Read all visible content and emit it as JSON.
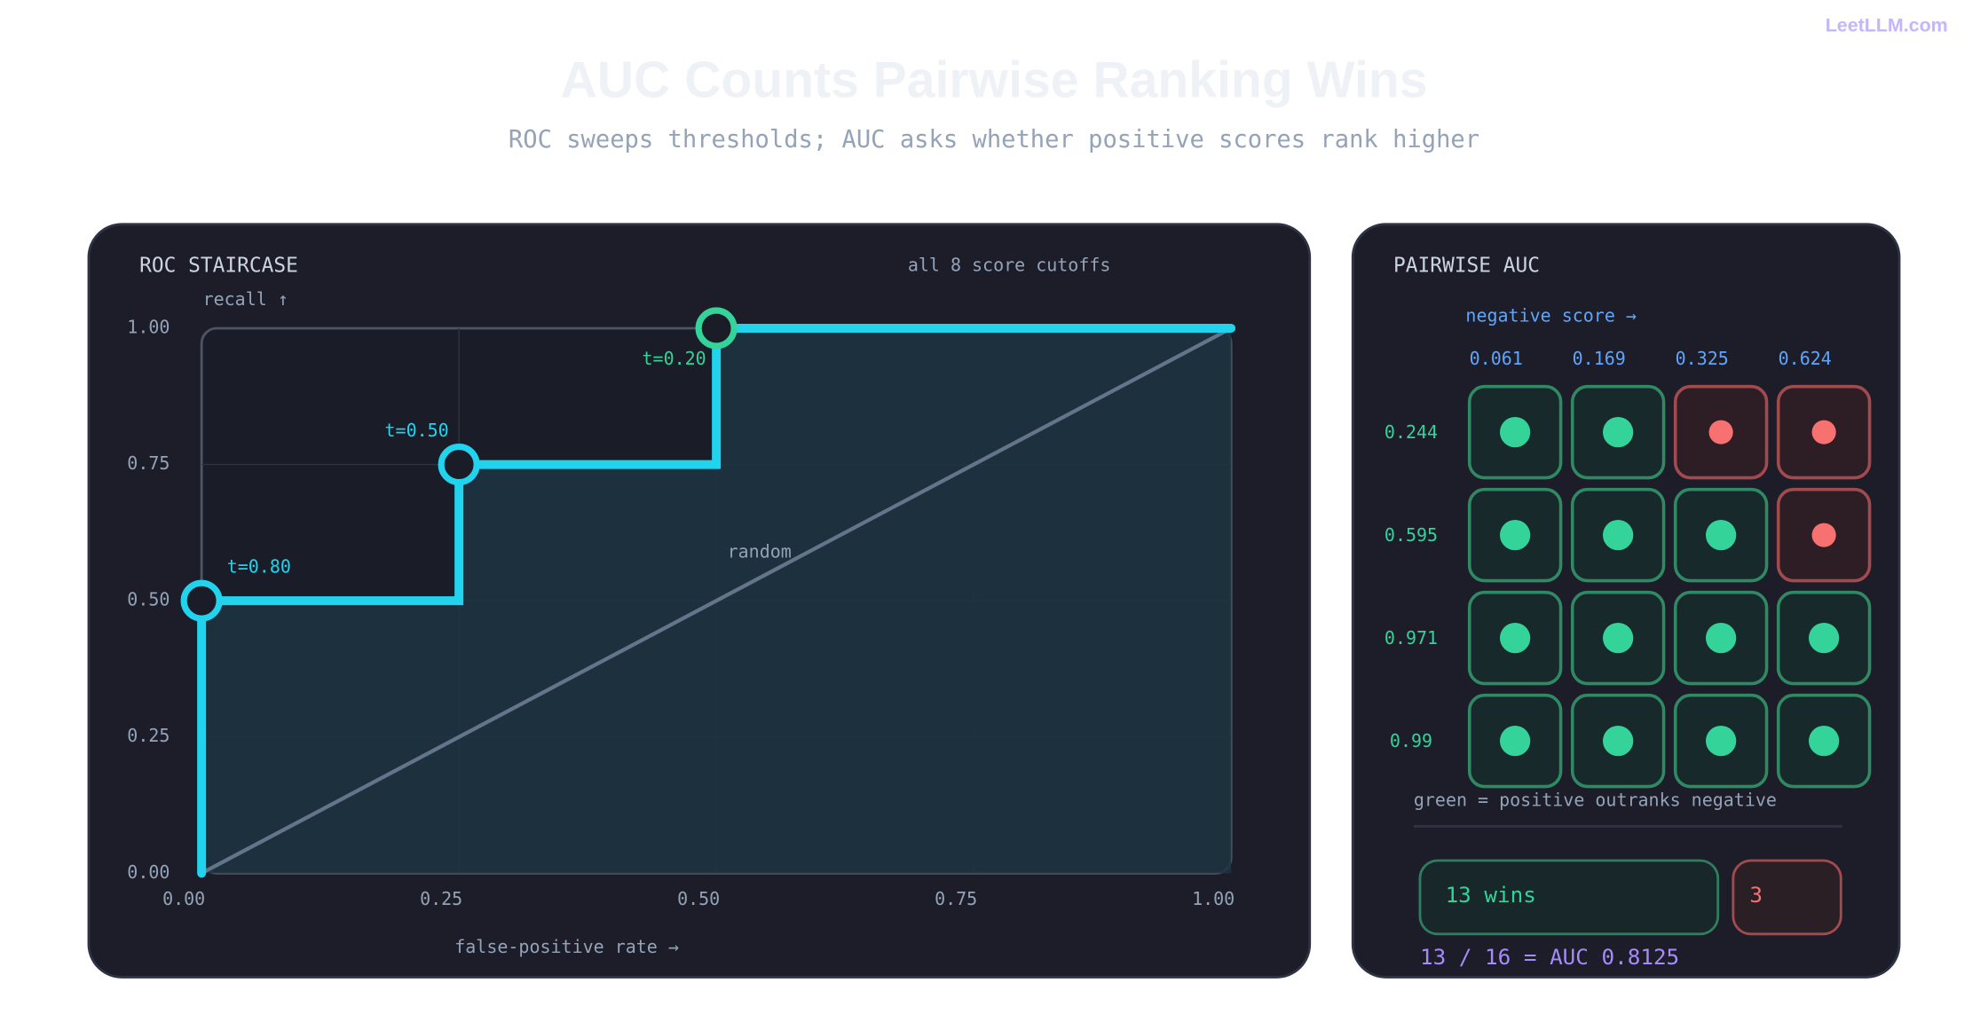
{
  "header": {
    "brand": "LeetLLM.com",
    "title": "AUC Counts Pairwise Ranking Wins",
    "subtitle": "ROC sweeps thresholds; AUC asks whether positive scores rank higher"
  },
  "chart_data": {
    "type": "line",
    "title": "ROC STAIRCASE",
    "subtitle": "all 8 score cutoffs",
    "y_label": "recall ↑",
    "x_label": "false-positive rate →",
    "xlim": [
      0,
      1
    ],
    "ylim": [
      0,
      1
    ],
    "xticks": [
      {
        "value": 0,
        "label": "0.00"
      },
      {
        "value": 0.25,
        "label": "0.25"
      },
      {
        "value": 0.5,
        "label": "0.50"
      },
      {
        "value": 0.75,
        "label": "0.75"
      },
      {
        "value": 1,
        "label": "1.00"
      }
    ],
    "yticks": [
      {
        "value": 0,
        "label": "0.00"
      },
      {
        "value": 0.25,
        "label": "0.25"
      },
      {
        "value": 0.5,
        "label": "0.50"
      },
      {
        "value": 0.75,
        "label": "0.75"
      },
      {
        "value": 1,
        "label": "1.00"
      }
    ],
    "grid": true,
    "series": [
      {
        "color": "#22d3ee",
        "x": [
          0,
          0,
          0.25,
          0.25,
          0.5,
          0.5,
          1
        ],
        "values": [
          0,
          0.5,
          0.5,
          0.75,
          0.75,
          1,
          1
        ]
      },
      {
        "name": "random",
        "color": "#64748b",
        "x": [
          0,
          1
        ],
        "values": [
          0,
          1
        ]
      }
    ],
    "annotations": [
      {
        "text": "t=0.80",
        "x": 0,
        "y": 0.5,
        "color": "#22d3ee"
      },
      {
        "text": "t=0.50",
        "x": 0.25,
        "y": 0.75,
        "color": "#22d3ee"
      },
      {
        "text": "t=0.20",
        "x": 0.5,
        "y": 1,
        "color": "#34d399"
      }
    ]
  },
  "pairwise": {
    "title": "PAIRWISE AUC",
    "column_label": "negative score →",
    "negatives": [
      0.061,
      0.169,
      0.325,
      0.624
    ],
    "positives": [
      0.244,
      0.595,
      0.971,
      0.99
    ],
    "note": "green = positive outranks negative",
    "win_color": "#34d399",
    "loss_color": "#f87171",
    "wins_label": "13 wins",
    "losses_label": "3",
    "equation": "13 / 16 = AUC 0.8125"
  }
}
